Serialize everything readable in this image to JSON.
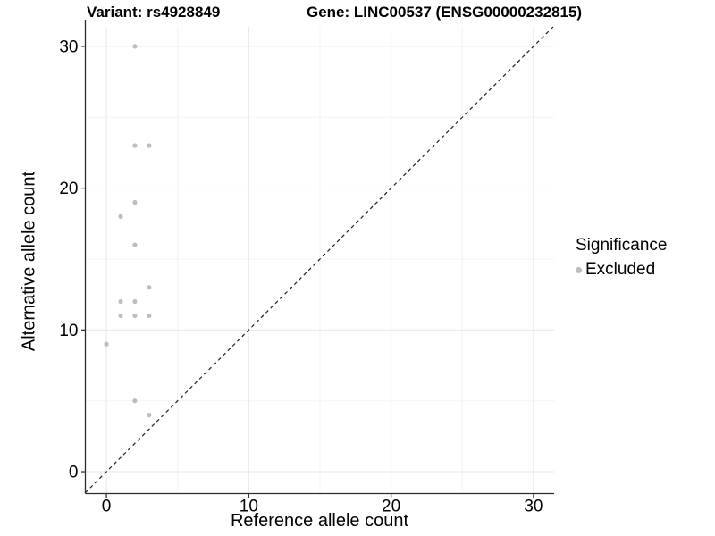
{
  "chart_data": {
    "type": "scatter",
    "title_left": "Variant: rs4928849",
    "title_right": "Gene: LINC00537 (ENSG00000232815)",
    "xlabel": "Reference allele count",
    "ylabel": "Alternative allele count",
    "x_ticks": [
      0,
      10,
      20,
      30
    ],
    "y_ticks": [
      0,
      10,
      20,
      30
    ],
    "x_minor_ticks": [
      5,
      15,
      25
    ],
    "y_minor_ticks": [
      5,
      15,
      25
    ],
    "xlim": [
      -1.48,
      31.45
    ],
    "ylim": [
      -1.54,
      31.38
    ],
    "points": [
      [
        0,
        9
      ],
      [
        1,
        11
      ],
      [
        1,
        12
      ],
      [
        1,
        18
      ],
      [
        2,
        5
      ],
      [
        2,
        11
      ],
      [
        2,
        12
      ],
      [
        2,
        16
      ],
      [
        2,
        19
      ],
      [
        2,
        23
      ],
      [
        2,
        30
      ],
      [
        3,
        4
      ],
      [
        3,
        11
      ],
      [
        3,
        13
      ],
      [
        3,
        23
      ]
    ],
    "identity_line": {
      "shown": true,
      "style": "dashed"
    },
    "grid": "on",
    "colors": {
      "point": "#bdbdbd",
      "grid_major": "#e7e7e7",
      "grid_minor": "#f3f3f3",
      "axis_line": "#2b2b2b",
      "tick_mark": "#333333",
      "dashed_line": "#1f1f1f",
      "background": "#ffffff"
    },
    "legend": {
      "title": "Significance",
      "position": "right",
      "items": [
        {
          "label": "Excluded",
          "color": "#bdbdbd"
        }
      ]
    }
  }
}
